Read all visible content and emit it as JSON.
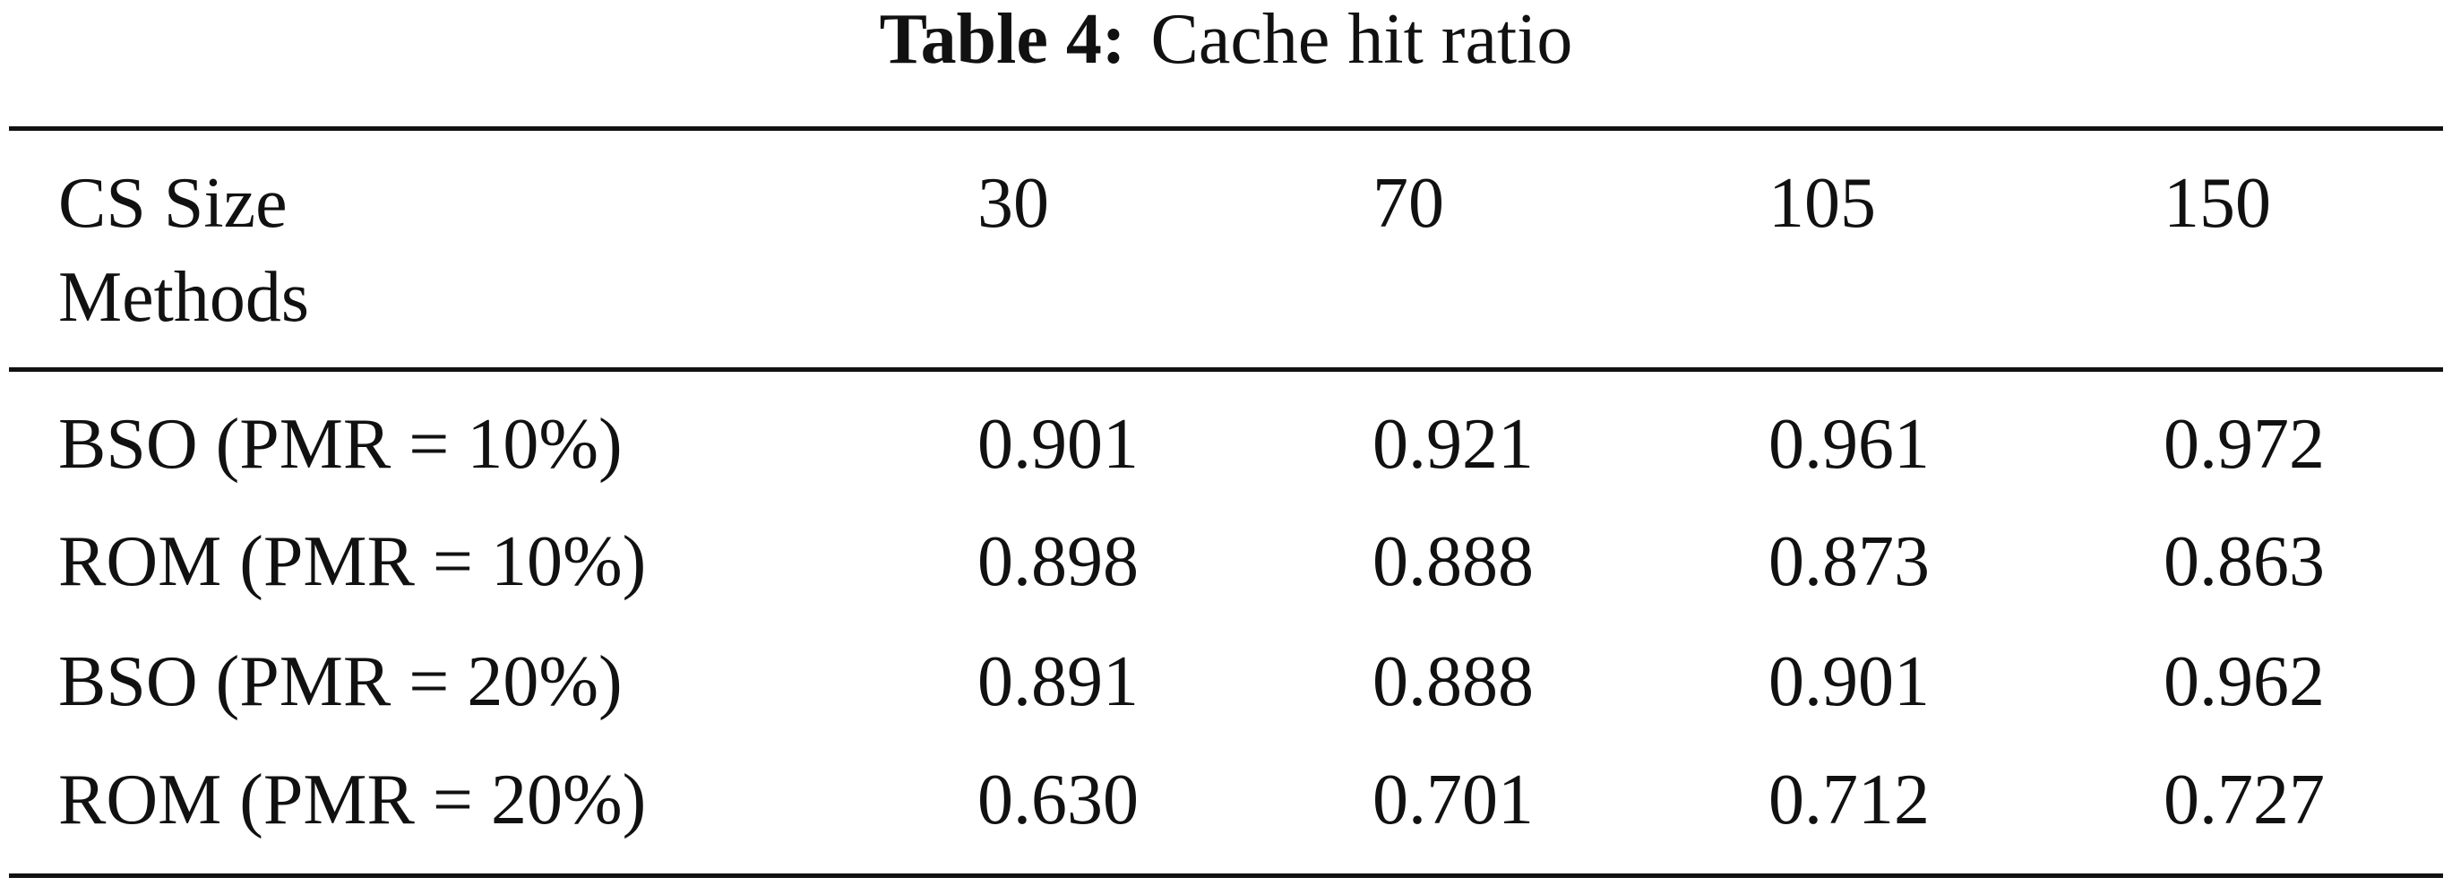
{
  "caption": {
    "label": "Table 4:",
    "text": "Cache hit ratio"
  },
  "table": {
    "header": {
      "row_label": "CS Size",
      "column_label": "Methods",
      "columns": [
        "30",
        "70",
        "105",
        "150"
      ]
    },
    "rows": [
      [
        "BSO (PMR = 10%)",
        "0.901",
        "0.921",
        "0.961",
        "0.972"
      ],
      [
        "ROM (PMR = 10%)",
        "0.898",
        "0.888",
        "0.873",
        "0.863"
      ],
      [
        "BSO (PMR = 20%)",
        "0.891",
        "0.888",
        "0.901",
        "0.962"
      ],
      [
        "ROM (PMR = 20%)",
        "0.630",
        "0.701",
        "0.712",
        "0.727"
      ]
    ]
  }
}
